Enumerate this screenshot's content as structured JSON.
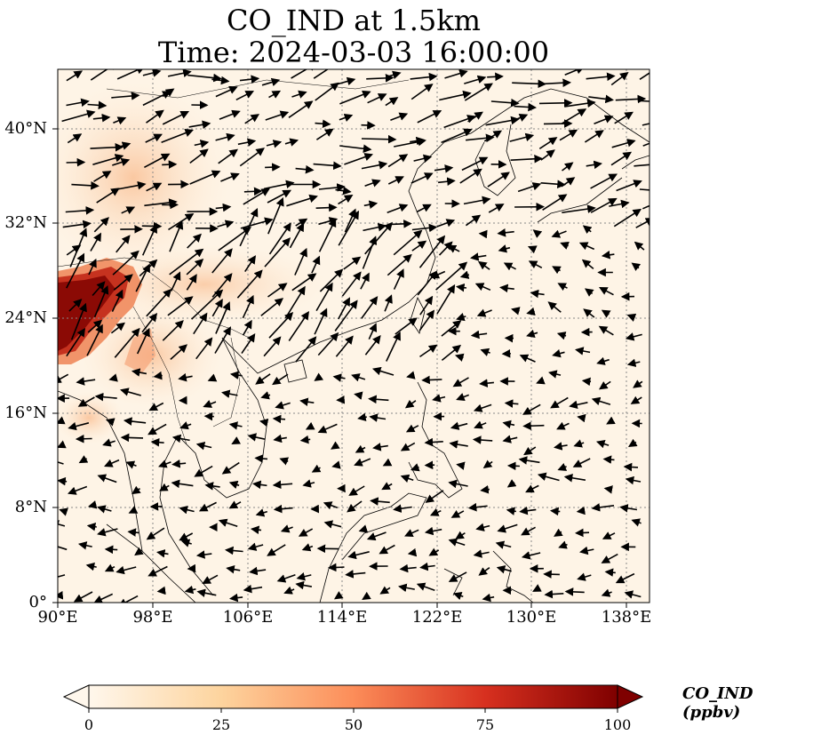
{
  "title_line1": "CO_IND at 1.5km",
  "title_line2": "Time: 2024-03-03 16:00:00",
  "map": {
    "lon_range": [
      90,
      140
    ],
    "lat_range": [
      0,
      45
    ],
    "x_ticks": [
      "90°E",
      "98°E",
      "106°E",
      "114°E",
      "122°E",
      "130°E",
      "138°E"
    ],
    "y_ticks": [
      "0°",
      "8°N",
      "16°N",
      "24°N",
      "32°N",
      "40°N"
    ],
    "gridlines": true,
    "gridline_style": "dotted gray",
    "field_name": "CO_IND",
    "colormap": "OrRd",
    "hotspot_description": "high CO_IND (>90 ppbv) over southwest China / northern Myanmar near 22-28°N, 90-95°E",
    "overlay": "wind vectors (black arrows)"
  },
  "colorbar": {
    "label": "CO_IND (ppbv)",
    "ticks": [
      "0",
      "25",
      "50",
      "75",
      "100"
    ],
    "min": 0,
    "max": 100,
    "extend": "both",
    "colors": [
      "#fff7ec",
      "#fdd49e",
      "#fc8d59",
      "#d7301f",
      "#7f0000"
    ]
  }
}
